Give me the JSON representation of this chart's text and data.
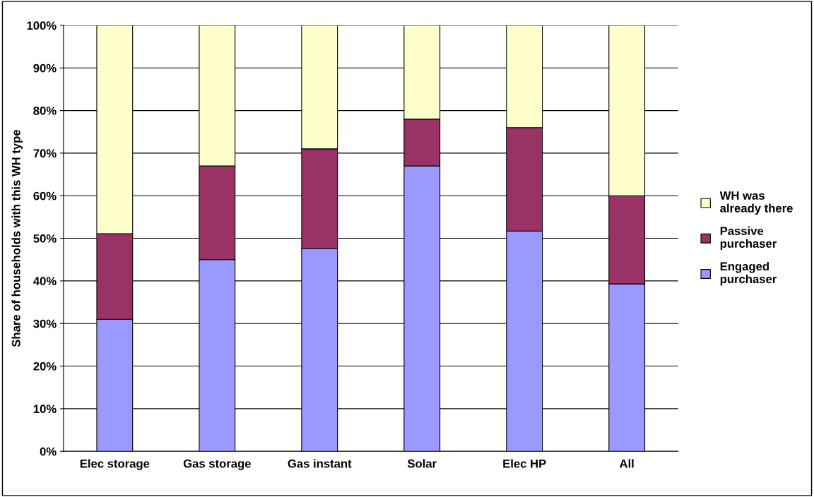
{
  "chart_data": {
    "type": "bar",
    "stacked": true,
    "ylabel": "Share of households with this WH type",
    "categories": [
      "Elec storage",
      "Gas storage",
      "Gas instant",
      "Solar",
      "Elec HP",
      "All"
    ],
    "series": [
      {
        "name": "Engaged\npurchaser",
        "color": "#9999ff",
        "values": [
          31.0,
          45.0,
          47.6,
          67.0,
          51.7,
          39.3
        ]
      },
      {
        "name": "Passive\npurchaser",
        "color": "#993366",
        "values": [
          20.1,
          22.0,
          23.4,
          11.0,
          24.3,
          20.7
        ]
      },
      {
        "name": "WH was\nalready there",
        "color": "#ffffcc",
        "values": [
          48.9,
          33.0,
          29.0,
          22.0,
          24.0,
          40.0
        ]
      }
    ],
    "ylim": [
      0,
      100
    ],
    "yticks": [
      {
        "value": 0,
        "label": "0%"
      },
      {
        "value": 10,
        "label": "10%"
      },
      {
        "value": 20,
        "label": "20%"
      },
      {
        "value": 30,
        "label": "30%"
      },
      {
        "value": 40,
        "label": "40%"
      },
      {
        "value": 50,
        "label": "50%"
      },
      {
        "value": 60,
        "label": "60%"
      },
      {
        "value": 70,
        "label": "70%"
      },
      {
        "value": 80,
        "label": "80%"
      },
      {
        "value": 90,
        "label": "90%"
      },
      {
        "value": 100,
        "label": "100%"
      }
    ],
    "grid": "y",
    "legend": "right"
  }
}
